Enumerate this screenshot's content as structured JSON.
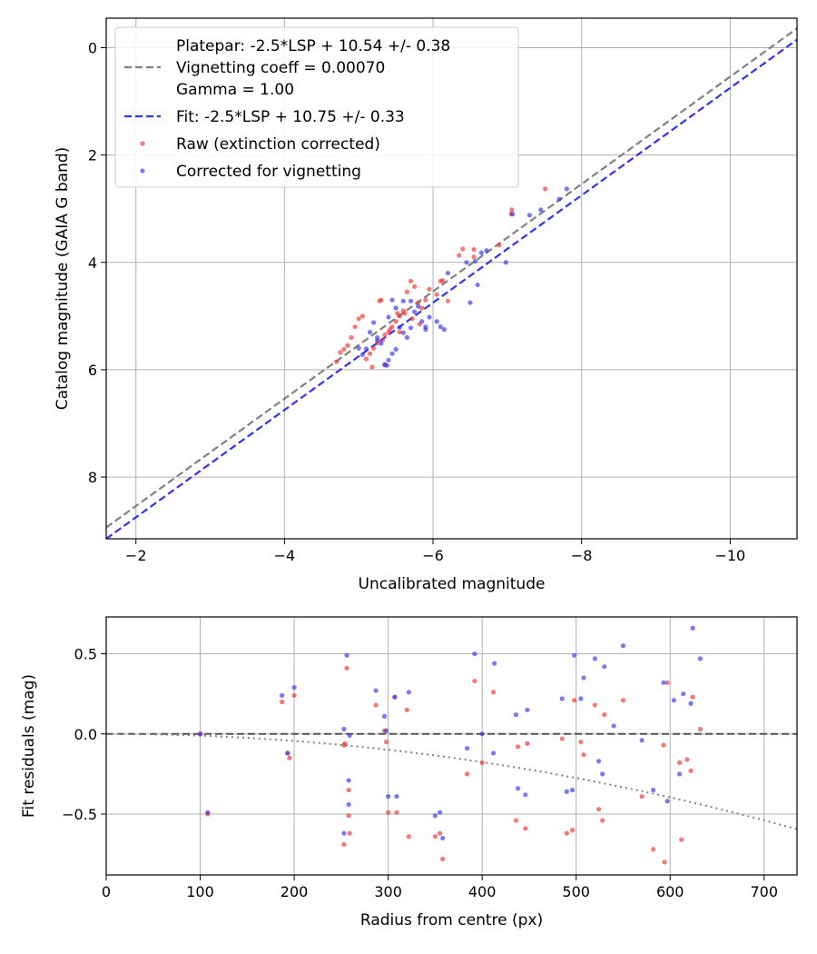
{
  "chart_data": [
    {
      "type": "scatter",
      "xlabel": "Uncalibrated magnitude",
      "ylabel": "Catalog magnitude (GAIA G band)",
      "xlim": [
        -1.6,
        -10.9
      ],
      "ylim": [
        9.15,
        -0.55
      ],
      "xticks": [
        -2,
        -4,
        -6,
        -8,
        -10
      ],
      "xtick_labels": [
        "−2",
        "−4",
        "−6",
        "−8",
        "−10"
      ],
      "yticks": [
        0,
        2,
        4,
        6,
        8
      ],
      "ytick_labels": [
        "0",
        "2",
        "4",
        "6",
        "8"
      ],
      "grid": true,
      "legend": {
        "placement": "top-left",
        "entries": [
          {
            "kind": "line",
            "color": "#808080",
            "lines": [
              "Platepar: -2.5*LSP + 10.54 +/- 0.38",
              "Vignetting coeff = 0.00070",
              "Gamma = 1.00"
            ]
          },
          {
            "kind": "line",
            "color": "#3333ee",
            "lines": [
              "Fit: -2.5*LSP + 10.75 +/- 0.33"
            ]
          },
          {
            "kind": "point",
            "color": "#ee3333",
            "lines": [
              "Raw (extinction corrected)"
            ]
          },
          {
            "kind": "point",
            "color": "#3333ee",
            "lines": [
              "Corrected for vignetting"
            ]
          }
        ]
      },
      "lines": [
        {
          "name": "Platepar",
          "slope": -2.5,
          "intercept": 10.54,
          "color": "#808080",
          "dash": "dashed"
        },
        {
          "name": "Fit",
          "slope": -2.5,
          "intercept": 10.75,
          "color": "#3333ee",
          "dash": "dashed"
        }
      ],
      "series": [
        {
          "name": "Raw (extinction corrected)",
          "color": "#ee3333",
          "x": [
            -7.51,
            -7.06,
            -7.05,
            -6.89,
            -6.55,
            -6.4,
            -6.35,
            -6.13,
            -6.1,
            -6.05,
            -5.9,
            -5.85,
            -5.8,
            -5.75,
            -5.7,
            -5.65,
            -5.6,
            -5.55,
            -5.5,
            -5.45,
            -5.4,
            -5.35,
            -5.3,
            -5.28,
            -5.25,
            -5.2,
            -5.15,
            -5.1,
            -5.05,
            -5.0,
            -4.95,
            -4.9,
            -4.85,
            -4.8,
            -4.75,
            -4.7,
            -5.32,
            -5.42,
            -5.52,
            -5.62,
            -5.72,
            -5.82,
            -5.95,
            -6.2,
            -6.55,
            -5.18,
            -5.35,
            -5.55
          ],
          "y": [
            2.63,
            3.02,
            3.1,
            3.68,
            3.76,
            3.75,
            3.87,
            4.34,
            4.35,
            4.6,
            4.7,
            4.85,
            4.75,
            4.45,
            4.35,
            4.55,
            4.9,
            5.0,
            5.1,
            5.2,
            5.3,
            5.35,
            4.7,
            4.72,
            5.5,
            5.6,
            5.7,
            5.8,
            5.0,
            5.05,
            5.2,
            5.4,
            5.55,
            5.62,
            5.68,
            5.85,
            5.45,
            5.25,
            4.95,
            4.95,
            5.05,
            5.15,
            4.5,
            4.72,
            3.9,
            5.95,
            5.9,
            5.3
          ]
        },
        {
          "name": "Corrected for vignetting",
          "color": "#3333ee",
          "x": [
            -7.8,
            -7.7,
            -7.45,
            -7.3,
            -7.07,
            -6.98,
            -6.72,
            -6.65,
            -6.6,
            -6.45,
            -6.2,
            -6.05,
            -5.95,
            -5.9,
            -5.85,
            -5.8,
            -5.75,
            -5.7,
            -5.65,
            -5.6,
            -5.55,
            -5.5,
            -5.45,
            -5.4,
            -5.35,
            -5.3,
            -5.25,
            -5.2,
            -5.15,
            -5.1,
            -5.05,
            -5.0,
            -5.45,
            -5.5,
            -5.6,
            -5.7,
            -5.9,
            -6.1,
            -6.15,
            -6.5,
            -6.57,
            -5.25,
            -5.4,
            -5.38
          ],
          "y": [
            2.63,
            2.82,
            3.02,
            3.12,
            3.1,
            4.0,
            3.78,
            3.82,
            4.42,
            4.0,
            4.2,
            5.1,
            5.02,
            5.2,
            5.1,
            4.82,
            4.92,
            5.22,
            5.4,
            5.31,
            5.21,
            5.62,
            5.7,
            5.82,
            5.91,
            5.51,
            5.4,
            5.12,
            5.3,
            5.61,
            5.72,
            5.6,
            4.7,
            4.85,
            4.72,
            4.72,
            5.25,
            5.2,
            5.25,
            4.75,
            3.98,
            5.45,
            5.02,
            5.92
          ]
        }
      ]
    },
    {
      "type": "scatter",
      "xlabel": "Radius from centre (px)",
      "ylabel": "Fit residuals (mag)",
      "xlim": [
        0,
        735
      ],
      "ylim": [
        -0.88,
        0.73
      ],
      "xticks": [
        0,
        100,
        200,
        300,
        400,
        500,
        600,
        700
      ],
      "xtick_labels": [
        "0",
        "100",
        "200",
        "300",
        "400",
        "500",
        "600",
        "700"
      ],
      "yticks": [
        0.5,
        0.0,
        -0.5
      ],
      "ytick_labels": [
        "0.5",
        "0.0",
        "−0.5"
      ],
      "grid": true,
      "zero_line": {
        "y": 0.0,
        "color": "#555555",
        "dash": "dashed"
      },
      "vignetting_curve": {
        "coeff": 0.0007,
        "color": "#808080",
        "dash": "dotted"
      },
      "series": [
        {
          "name": "Raw (extinction corrected)",
          "color": "#ee3333",
          "x": [
            100,
            108,
            187,
            193,
            195,
            200,
            253,
            253,
            254,
            256,
            258,
            258,
            259,
            287,
            296,
            298,
            300,
            307,
            309,
            320,
            322,
            350,
            355,
            358,
            384,
            392,
            400,
            412,
            436,
            438,
            446,
            448,
            485,
            490,
            496,
            498,
            505,
            508,
            520,
            524,
            528,
            530,
            550,
            570,
            582,
            593,
            594,
            610,
            612,
            622,
            624,
            632,
            618,
            597
          ],
          "y": [
            0.0,
            -0.5,
            0.2,
            -0.12,
            -0.15,
            0.24,
            -0.69,
            -0.07,
            -0.06,
            0.41,
            -0.35,
            -0.51,
            -0.62,
            0.18,
            0.02,
            -0.05,
            -0.49,
            0.23,
            -0.49,
            0.15,
            -0.64,
            -0.64,
            -0.62,
            -0.78,
            -0.25,
            0.33,
            -0.18,
            0.26,
            -0.54,
            -0.08,
            -0.59,
            -0.06,
            -0.03,
            -0.62,
            -0.6,
            0.21,
            -0.05,
            -0.13,
            0.18,
            -0.47,
            -0.54,
            0.12,
            0.21,
            -0.39,
            -0.72,
            -0.07,
            -0.8,
            -0.18,
            -0.66,
            -0.23,
            0.23,
            0.03,
            -0.16,
            0.32
          ]
        },
        {
          "name": "Corrected for vignetting",
          "color": "#3333ee",
          "x": [
            100,
            108,
            187,
            193,
            200,
            253,
            253,
            256,
            258,
            258,
            259,
            287,
            296,
            298,
            300,
            307,
            309,
            322,
            350,
            355,
            358,
            384,
            392,
            400,
            412,
            413,
            436,
            438,
            446,
            448,
            485,
            490,
            496,
            498,
            505,
            508,
            520,
            524,
            528,
            530,
            540,
            550,
            570,
            582,
            593,
            597,
            604,
            610,
            614,
            622,
            624,
            632
          ],
          "y": [
            0.0,
            -0.49,
            0.24,
            -0.12,
            0.29,
            -0.62,
            0.03,
            0.49,
            -0.29,
            -0.44,
            -0.01,
            0.27,
            0.11,
            0.02,
            -0.39,
            0.23,
            -0.39,
            0.26,
            -0.51,
            -0.49,
            -0.65,
            -0.09,
            0.5,
            0.0,
            -0.12,
            0.44,
            0.12,
            -0.34,
            -0.38,
            0.15,
            0.22,
            -0.36,
            -0.35,
            0.49,
            0.22,
            0.35,
            0.47,
            -0.17,
            -0.25,
            0.42,
            0.05,
            0.55,
            -0.04,
            -0.35,
            0.32,
            -0.42,
            0.21,
            -0.25,
            0.25,
            0.19,
            0.66,
            0.47
          ]
        }
      ]
    }
  ]
}
